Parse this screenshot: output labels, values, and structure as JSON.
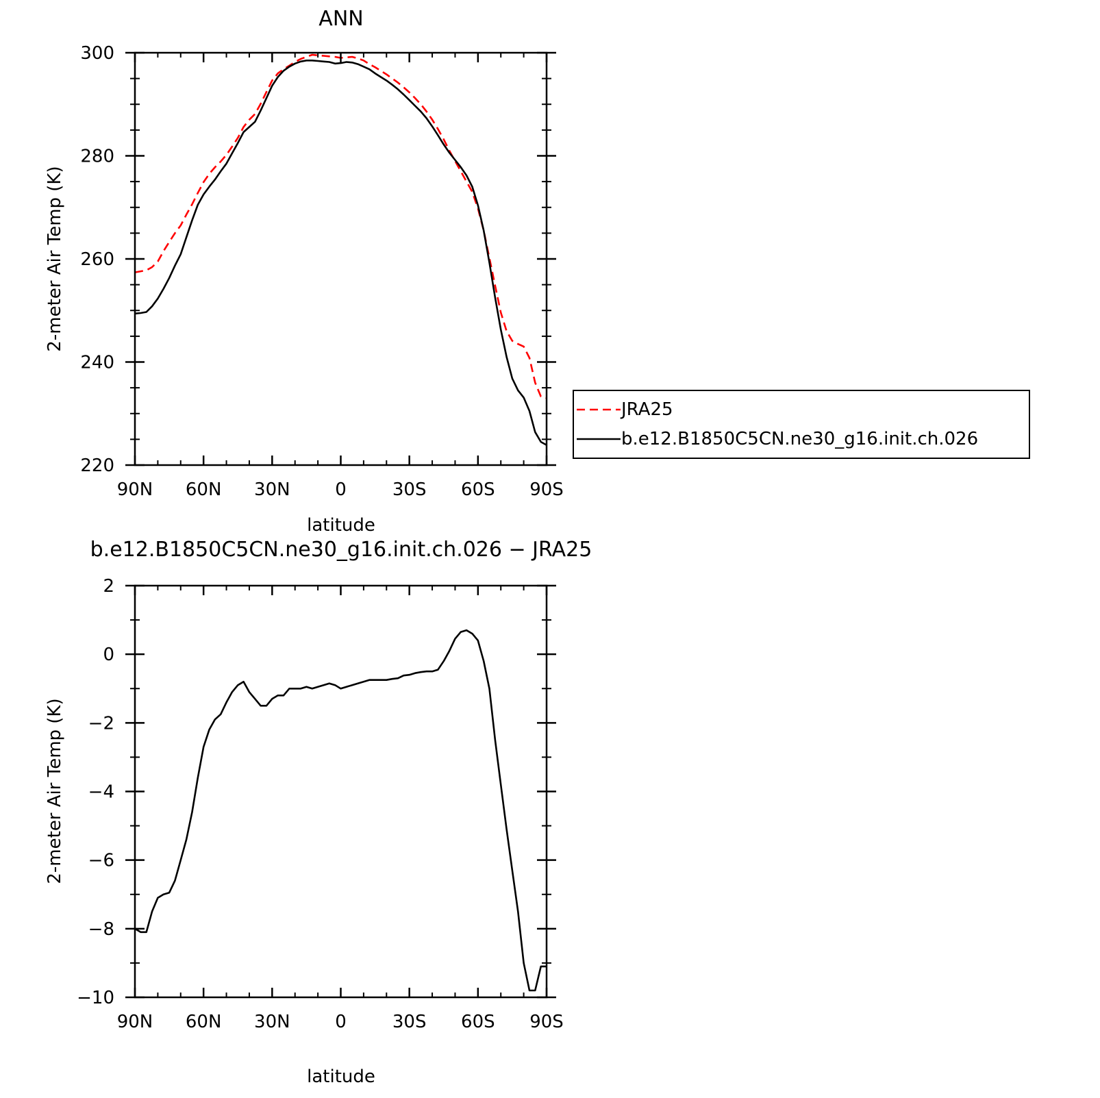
{
  "chart_data": [
    {
      "type": "line",
      "title": "ANN",
      "xlabel": "latitude",
      "ylabel": "2-meter Air Temp (K)",
      "xlim": [
        90,
        -90
      ],
      "ylim": [
        220,
        300
      ],
      "xticks": [
        90,
        60,
        30,
        0,
        -30,
        -60,
        -90
      ],
      "xticklabels": [
        "90N",
        "60N",
        "30N",
        "0",
        "30S",
        "60S",
        "90S"
      ],
      "yticks": [
        220,
        240,
        260,
        280,
        300
      ],
      "yticklabels": [
        "220",
        "240",
        "260",
        "280",
        "300"
      ],
      "legend": "right",
      "series": [
        {
          "name": "JRA25",
          "color": "#ff0000",
          "dash": "dashed",
          "x": [
            90,
            87.5,
            85,
            82.5,
            80,
            77.5,
            75,
            72.5,
            70,
            67.5,
            65,
            62.5,
            60,
            57.5,
            55,
            52.5,
            50,
            47.5,
            45,
            42.5,
            40,
            37.5,
            35,
            32.5,
            30,
            27.5,
            25,
            22.5,
            20,
            17.5,
            15,
            12.5,
            10,
            7.5,
            5,
            2.5,
            0,
            -2.5,
            -5,
            -7.5,
            -10,
            -12.5,
            -15,
            -17.5,
            -20,
            -22.5,
            -25,
            -27.5,
            -30,
            -32.5,
            -35,
            -37.5,
            -40,
            -42.5,
            -45,
            -47.5,
            -50,
            -52.5,
            -55,
            -57.5,
            -60,
            -62.5,
            -65,
            -67.5,
            -70,
            -72.5,
            -75,
            -77.5,
            -80,
            -82.5,
            -85,
            -87.5,
            -90
          ],
          "values": [
            257.4,
            257.6,
            257.8,
            258.4,
            259.5,
            261.5,
            263.3,
            265.0,
            266.5,
            268.6,
            270.6,
            272.8,
            274.9,
            276.5,
            277.8,
            278.9,
            280.2,
            281.8,
            283.5,
            285.6,
            287.0,
            288.1,
            290.1,
            292.4,
            294.6,
            296.0,
            296.8,
            297.5,
            298.2,
            298.8,
            299.2,
            299.6,
            299.5,
            299.4,
            299.3,
            299.2,
            299.0,
            299.1,
            299.2,
            298.9,
            298.5,
            297.8,
            297.2,
            296.5,
            295.8,
            295.0,
            294.2,
            293.3,
            292.3,
            291.2,
            290.0,
            288.6,
            287.0,
            285.2,
            283.2,
            281.0,
            279.0,
            277.0,
            275.0,
            273.0,
            269.8,
            265.5,
            260.2,
            254.8,
            249.6,
            246.0,
            244.1,
            243.5,
            243.0,
            240.8,
            236.0,
            233.3,
            233.0
          ]
        },
        {
          "name": "b.e12.B1850C5CN.ne30_g16.init.ch.026",
          "color": "#000000",
          "dash": "solid",
          "x": [
            90,
            87.5,
            85,
            82.5,
            80,
            77.5,
            75,
            72.5,
            70,
            67.5,
            65,
            62.5,
            60,
            57.5,
            55,
            52.5,
            50,
            47.5,
            45,
            42.5,
            40,
            37.5,
            35,
            32.5,
            30,
            27.5,
            25,
            22.5,
            20,
            17.5,
            15,
            12.5,
            10,
            7.5,
            5,
            2.5,
            0,
            -2.5,
            -5,
            -7.5,
            -10,
            -12.5,
            -15,
            -17.5,
            -20,
            -22.5,
            -25,
            -27.5,
            -30,
            -32.5,
            -35,
            -37.5,
            -40,
            -42.5,
            -45,
            -47.5,
            -50,
            -52.5,
            -55,
            -57.5,
            -60,
            -62.5,
            -65,
            -67.5,
            -70,
            -72.5,
            -75,
            -77.5,
            -80,
            -82.5,
            -85,
            -87.5,
            -90
          ],
          "values": [
            249.4,
            249.5,
            249.7,
            250.8,
            252.3,
            254.2,
            256.3,
            258.7,
            260.9,
            264.2,
            267.5,
            270.5,
            272.5,
            274.0,
            275.4,
            277.0,
            278.5,
            280.5,
            282.5,
            284.6,
            285.6,
            286.6,
            288.8,
            291.2,
            293.6,
            295.3,
            296.5,
            297.3,
            297.9,
            298.3,
            298.5,
            298.5,
            298.4,
            298.3,
            298.2,
            297.9,
            298.0,
            298.2,
            298.1,
            297.8,
            297.3,
            296.8,
            296.0,
            295.3,
            294.6,
            293.8,
            292.9,
            291.9,
            290.8,
            289.7,
            288.6,
            287.3,
            285.7,
            284.0,
            282.2,
            280.6,
            279.2,
            277.8,
            276.2,
            274.0,
            270.4,
            265.5,
            259.3,
            252.5,
            246.3,
            241.0,
            236.8,
            234.5,
            233.1,
            230.5,
            226.4,
            224.5,
            223.9
          ]
        }
      ]
    },
    {
      "type": "line",
      "title": "b.e12.B1850C5CN.ne30_g16.init.ch.026 − JRA25",
      "xlabel": "latitude",
      "ylabel": "2-meter Air Temp (K)",
      "xlim": [
        90,
        -90
      ],
      "ylim": [
        -10,
        2
      ],
      "xticks": [
        90,
        60,
        30,
        0,
        -30,
        -60,
        -90
      ],
      "xticklabels": [
        "90N",
        "60N",
        "30N",
        "0",
        "30S",
        "60S",
        "90S"
      ],
      "yticks": [
        -10,
        -8,
        -6,
        -4,
        -2,
        0,
        2
      ],
      "yticklabels": [
        "−10",
        "−8",
        "−6",
        "−4",
        "−2",
        "0",
        "2"
      ],
      "series": [
        {
          "color": "#000000",
          "dash": "solid",
          "x": [
            90,
            87.5,
            85,
            82.5,
            80,
            77.5,
            75,
            72.5,
            70,
            67.5,
            65,
            62.5,
            60,
            57.5,
            55,
            52.5,
            50,
            47.5,
            45,
            42.5,
            40,
            37.5,
            35,
            32.5,
            30,
            27.5,
            25,
            22.5,
            20,
            17.5,
            15,
            12.5,
            10,
            7.5,
            5,
            2.5,
            0,
            -2.5,
            -5,
            -7.5,
            -10,
            -12.5,
            -15,
            -17.5,
            -20,
            -22.5,
            -25,
            -27.5,
            -30,
            -32.5,
            -35,
            -37.5,
            -40,
            -42.5,
            -45,
            -47.5,
            -50,
            -52.5,
            -55,
            -57.5,
            -60,
            -62.5,
            -65,
            -67.5,
            -70,
            -72.5,
            -75,
            -77.5,
            -80,
            -82.5,
            -85,
            -87.5,
            -90
          ],
          "values": [
            -8.0,
            -8.1,
            -8.1,
            -7.5,
            -7.1,
            -7.0,
            -6.95,
            -6.6,
            -6.0,
            -5.4,
            -4.6,
            -3.6,
            -2.7,
            -2.2,
            -1.9,
            -1.75,
            -1.4,
            -1.1,
            -0.9,
            -0.8,
            -1.1,
            -1.3,
            -1.5,
            -1.5,
            -1.3,
            -1.2,
            -1.2,
            -1.0,
            -1.0,
            -1.0,
            -0.95,
            -1.0,
            -0.95,
            -0.9,
            -0.85,
            -0.9,
            -1.0,
            -0.95,
            -0.9,
            -0.85,
            -0.8,
            -0.75,
            -0.75,
            -0.75,
            -0.75,
            -0.72,
            -0.7,
            -0.62,
            -0.6,
            -0.55,
            -0.52,
            -0.5,
            -0.5,
            -0.45,
            -0.2,
            0.1,
            0.45,
            0.65,
            0.7,
            0.6,
            0.4,
            -0.2,
            -1.0,
            -2.5,
            -3.8,
            -5.1,
            -6.3,
            -7.5,
            -9.0,
            -9.8,
            -9.8,
            -9.1,
            -9.1
          ]
        }
      ]
    }
  ]
}
